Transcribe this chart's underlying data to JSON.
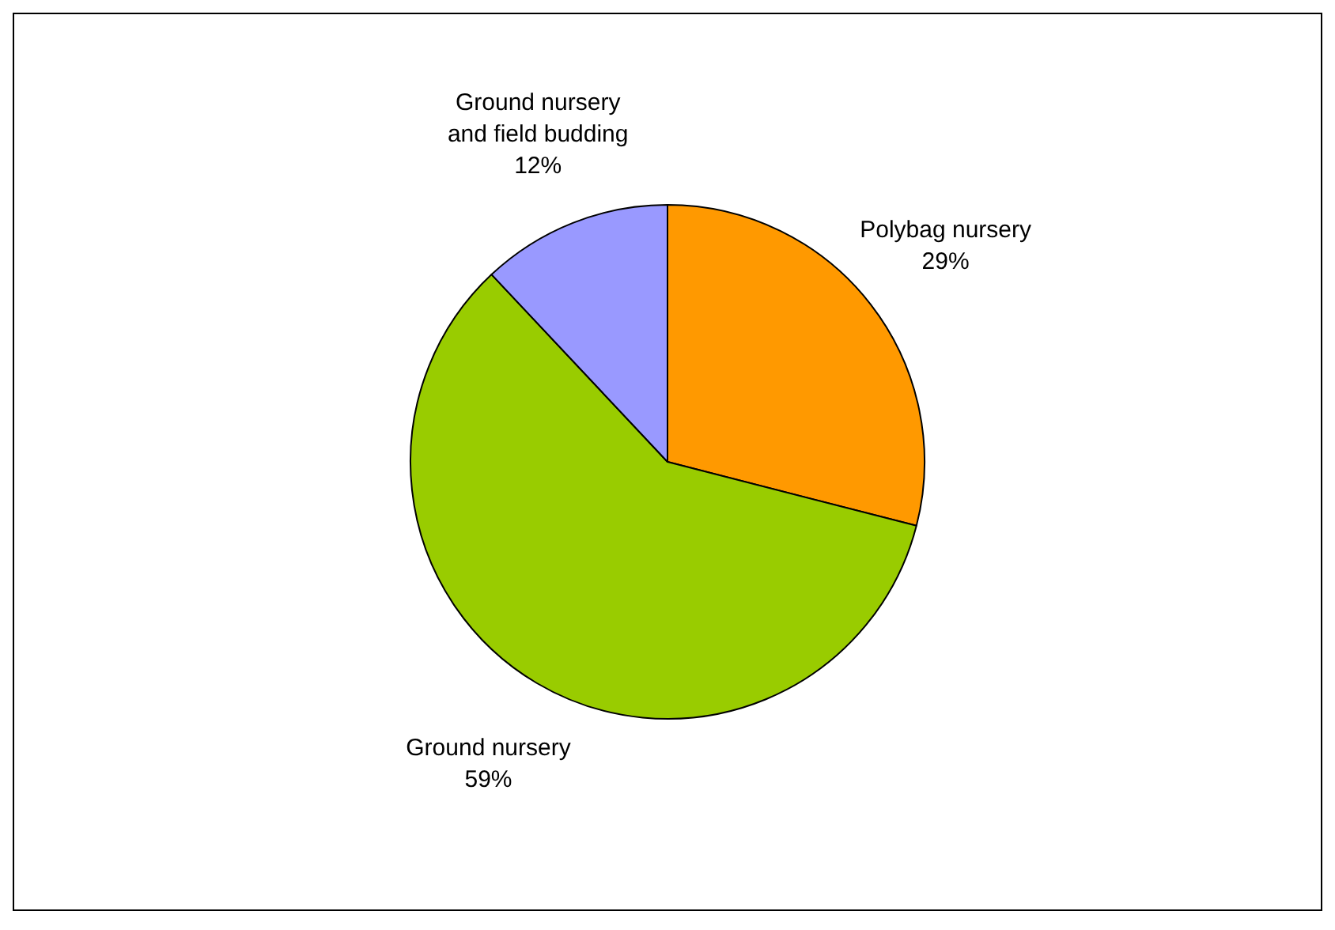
{
  "chart_data": {
    "type": "pie",
    "categories": [
      "Polybag nursery",
      "Ground nursery",
      "Ground nursery and field budding"
    ],
    "values": [
      29,
      59,
      12
    ],
    "value_labels": [
      "29%",
      "59%",
      "12%"
    ],
    "colors": [
      "#ff9900",
      "#99cc00",
      "#9999ff"
    ],
    "legend": false
  }
}
